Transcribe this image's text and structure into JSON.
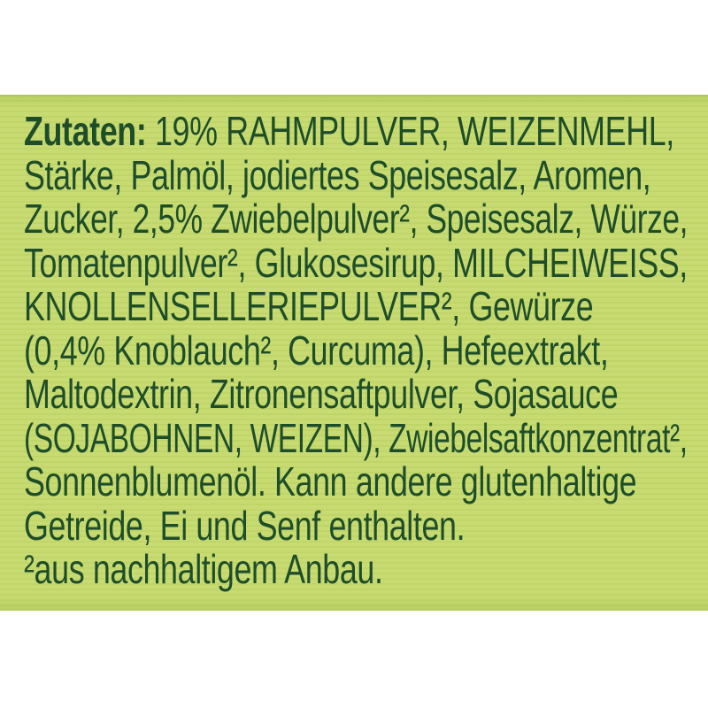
{
  "colors": {
    "panel_background": "#c6da6d",
    "text": "#1e4e29",
    "page_background": "#ffffff"
  },
  "ingredients": {
    "heading": "Zutaten:",
    "lines": [
      " 19% RAHMPULVER, WEIZENMEHL,",
      "Stärke, Palmöl, jodiertes Speisesalz, Aromen,",
      "Zucker, 2,5% Zwiebelpulver², Speisesalz, Würze,",
      "Tomatenpulver², Glukosesirup, MILCHEIWEISS,",
      "KNOLLENSELLERIEPULVER², Gewürze",
      "(0,4% Knoblauch², Curcuma), Hefeextrakt,",
      "Maltodextrin, Zitronensaftpulver, Sojasauce",
      "(SOJABOHNEN, WEIZEN), Zwiebelsaftkonzentrat²,",
      "Sonnenblumenöl. Kann andere glutenhaltige",
      "Getreide, Ei und Senf enthalten.",
      "²aus nachhaltigem Anbau."
    ]
  }
}
